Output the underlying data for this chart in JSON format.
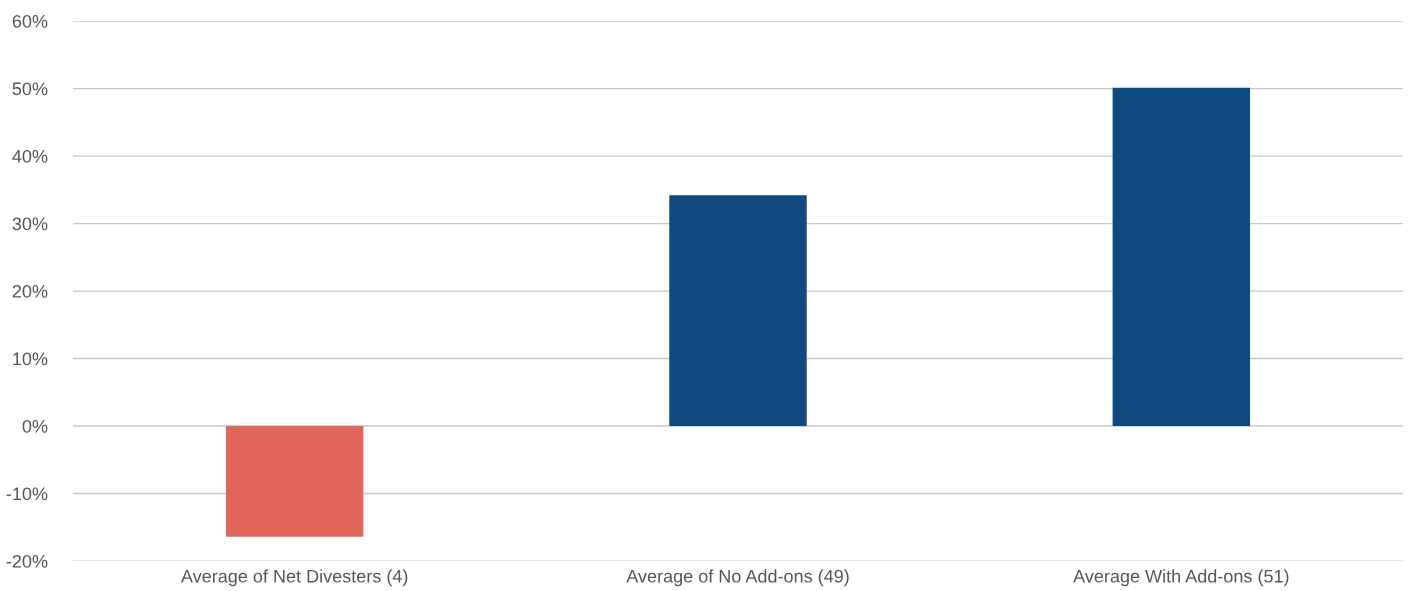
{
  "chart_data": {
    "type": "bar",
    "categories": [
      "Average of Net Divesters (4)",
      "Average of No Add-ons (49)",
      "Average With Add-ons (51)"
    ],
    "values": [
      -16.4,
      34.2,
      50.1
    ],
    "colors": [
      "#e06759",
      "#0f4a7e",
      "#0f4a7e"
    ],
    "ylim": [
      -20,
      60
    ],
    "yticks": [
      {
        "value": -20,
        "label": "-20%"
      },
      {
        "value": -10,
        "label": "-10%"
      },
      {
        "value": 0,
        "label": "0%"
      },
      {
        "value": 10,
        "label": "10%"
      },
      {
        "value": 20,
        "label": "20%"
      },
      {
        "value": 30,
        "label": "30%"
      },
      {
        "value": 40,
        "label": "40%"
      },
      {
        "value": 50,
        "label": "50%"
      },
      {
        "value": 60,
        "label": "60%"
      }
    ],
    "grid": "y"
  }
}
